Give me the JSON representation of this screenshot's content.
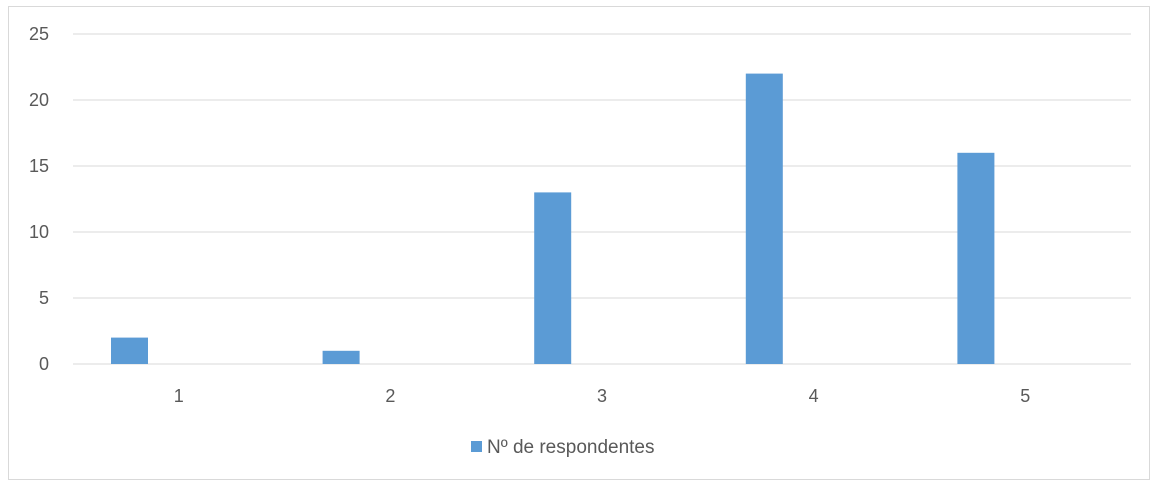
{
  "chart_data": {
    "type": "bar",
    "categories": [
      "1",
      "2",
      "3",
      "4",
      "5"
    ],
    "series": [
      {
        "name": "Nº de respondentes",
        "values": [
          2,
          1,
          13,
          22,
          16
        ],
        "color": "#5b9bd5"
      }
    ],
    "title": "",
    "xlabel": "",
    "ylabel": "",
    "ylim": [
      0,
      25
    ],
    "yticks": [
      "0",
      "5",
      "10",
      "15",
      "20",
      "25"
    ],
    "grid": true,
    "legend_position": "bottom",
    "gridline_color": "#d9d9d9",
    "text_color": "#595959"
  }
}
